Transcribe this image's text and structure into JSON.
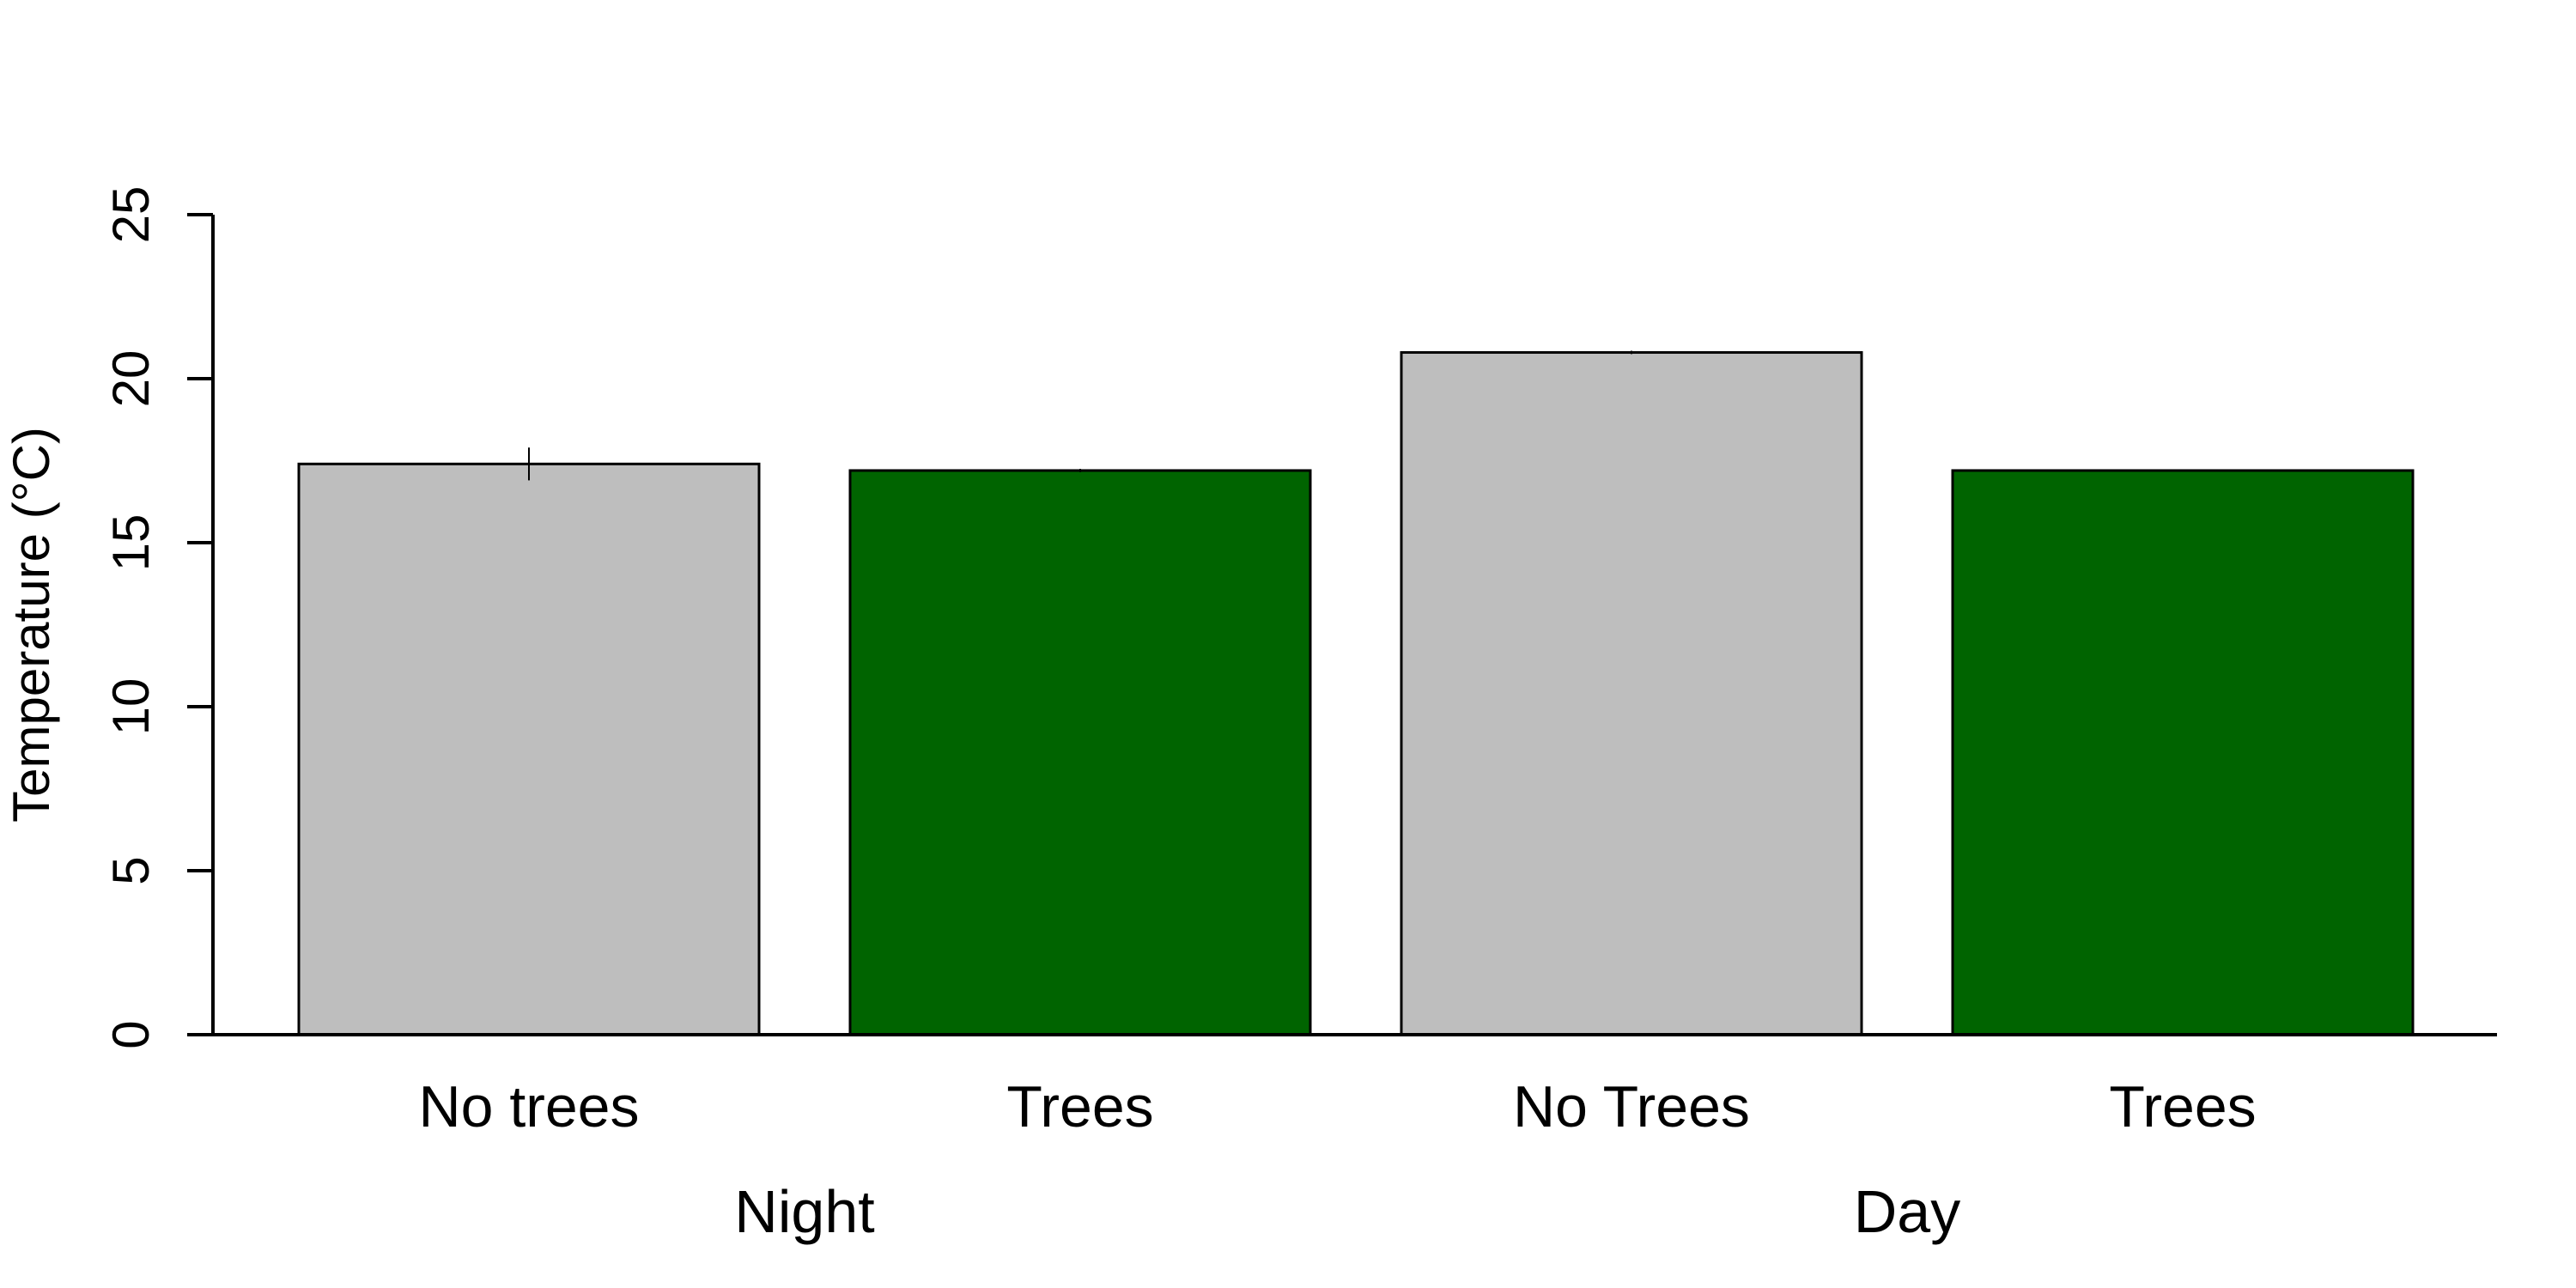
{
  "chart_data": {
    "type": "bar",
    "title": "",
    "xlabel": "",
    "ylabel": "Temperature (°C)",
    "ylim": [
      0,
      25
    ],
    "yticks": [
      0,
      5,
      10,
      15,
      20,
      25
    ],
    "grid": false,
    "legend": "none",
    "categories": [
      "No trees",
      "Trees",
      "No Trees",
      "Trees"
    ],
    "groups": [
      {
        "label": "Night",
        "categories": [
          0,
          1
        ]
      },
      {
        "label": "Day",
        "categories": [
          2,
          3
        ]
      }
    ],
    "values": [
      17.4,
      17.2,
      20.8,
      17.2
    ],
    "errors": [
      0.5,
      0.05,
      0.05,
      0.0
    ],
    "colors": [
      "#bebebe",
      "#006400",
      "#bebebe",
      "#006400"
    ]
  }
}
